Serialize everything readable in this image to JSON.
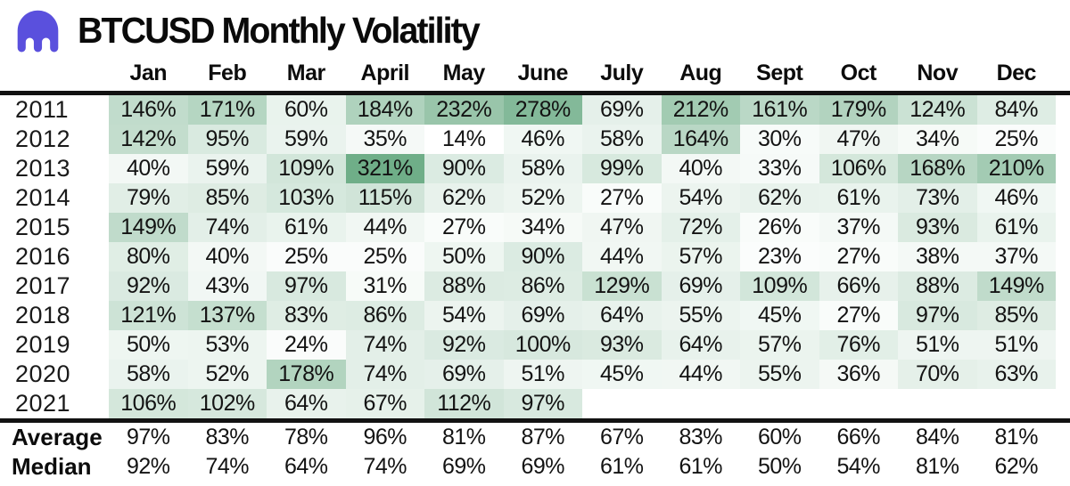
{
  "header": {
    "logo": "kraken-logo",
    "title": "BTCUSD Monthly Volatility"
  },
  "colors": {
    "logo": "#5a50dd",
    "heatmap_min": "#ffffff",
    "heatmap_max": "#6fae88",
    "rule": "#121212",
    "text": "#131313"
  },
  "chart_data": {
    "type": "heatmap",
    "title": "BTCUSD Monthly Volatility",
    "unit": "%",
    "grid": false,
    "legend_position": "none",
    "scale": {
      "domain_min": 14,
      "domain_max": 321,
      "min_color": "#ffffff",
      "max_color": "#6fae88"
    },
    "columns": [
      "Jan",
      "Feb",
      "Mar",
      "April",
      "May",
      "June",
      "July",
      "Aug",
      "Sept",
      "Oct",
      "Nov",
      "Dec"
    ],
    "rows": [
      {
        "label": "2011",
        "values": [
          146,
          171,
          60,
          184,
          232,
          278,
          69,
          212,
          161,
          179,
          124,
          84
        ]
      },
      {
        "label": "2012",
        "values": [
          142,
          95,
          59,
          35,
          14,
          46,
          58,
          164,
          30,
          47,
          34,
          25
        ]
      },
      {
        "label": "2013",
        "values": [
          40,
          59,
          109,
          321,
          90,
          58,
          99,
          40,
          33,
          106,
          168,
          210
        ]
      },
      {
        "label": "2014",
        "values": [
          79,
          85,
          103,
          115,
          62,
          52,
          27,
          54,
          62,
          61,
          73,
          46
        ]
      },
      {
        "label": "2015",
        "values": [
          149,
          74,
          61,
          44,
          27,
          34,
          47,
          72,
          26,
          37,
          93,
          61
        ]
      },
      {
        "label": "2016",
        "values": [
          80,
          40,
          25,
          25,
          50,
          90,
          44,
          57,
          23,
          27,
          38,
          37
        ]
      },
      {
        "label": "2017",
        "values": [
          92,
          43,
          97,
          31,
          88,
          86,
          129,
          69,
          109,
          66,
          88,
          149
        ]
      },
      {
        "label": "2018",
        "values": [
          121,
          137,
          83,
          86,
          54,
          69,
          64,
          55,
          45,
          27,
          97,
          85
        ]
      },
      {
        "label": "2019",
        "values": [
          50,
          53,
          24,
          74,
          92,
          100,
          93,
          64,
          57,
          76,
          51,
          51
        ]
      },
      {
        "label": "2020",
        "values": [
          58,
          52,
          178,
          74,
          69,
          51,
          45,
          44,
          55,
          36,
          70,
          63
        ]
      },
      {
        "label": "2021",
        "values": [
          106,
          102,
          64,
          67,
          112,
          97,
          null,
          null,
          null,
          null,
          null,
          null
        ]
      }
    ],
    "summary_rows": [
      {
        "label": "Average",
        "values": [
          97,
          83,
          78,
          96,
          81,
          87,
          67,
          83,
          60,
          66,
          84,
          81
        ]
      },
      {
        "label": "Median",
        "values": [
          92,
          74,
          64,
          74,
          69,
          69,
          61,
          61,
          50,
          54,
          81,
          62
        ]
      }
    ]
  }
}
